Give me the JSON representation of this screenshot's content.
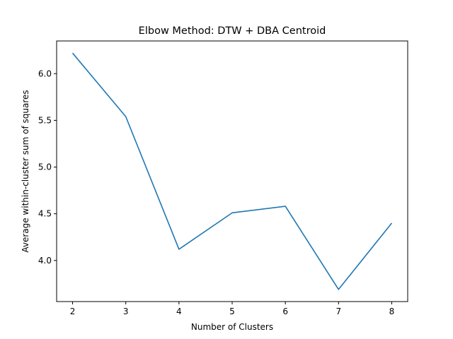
{
  "chart_data": {
    "type": "line",
    "title": "Elbow Method: DTW + DBA Centroid",
    "xlabel": "Number of Clusters",
    "ylabel": "Average within-cluster sum of squares",
    "x": [
      2,
      3,
      4,
      5,
      6,
      7,
      8
    ],
    "series": [
      {
        "values": [
          6.22,
          5.54,
          4.12,
          4.51,
          4.58,
          3.69,
          4.4
        ],
        "color": "#1f77b4"
      }
    ],
    "xlim": [
      1.7,
      8.3
    ],
    "ylim": [
      3.56,
      6.35
    ],
    "xticks": [
      "2",
      "3",
      "4",
      "5",
      "6",
      "7",
      "8"
    ],
    "yticks": [
      "4.0",
      "4.5",
      "5.0",
      "5.5",
      "6.0"
    ],
    "grid": false,
    "legend": "none"
  }
}
